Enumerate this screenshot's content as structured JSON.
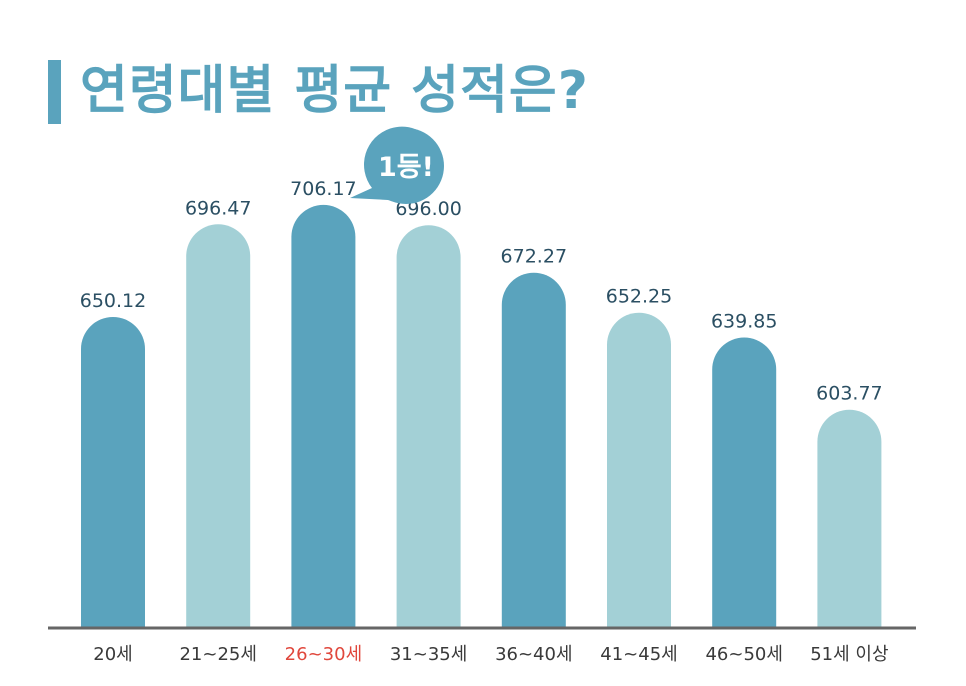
{
  "chart_data": {
    "type": "bar",
    "title": "연령대별 평균 성적은?",
    "categories": [
      "20세",
      "21~25세",
      "26~30세",
      "31~35세",
      "36~40세",
      "41~45세",
      "46~50세",
      "51세 이상"
    ],
    "values": [
      650.12,
      696.47,
      706.17,
      696.0,
      672.27,
      652.25,
      639.85,
      603.77
    ],
    "value_labels": [
      "650.12",
      "696.47",
      "706.17",
      "696.00",
      "672.27",
      "652.25",
      "639.85",
      "603.77"
    ],
    "highlight_index": 2,
    "highlight_badge": "1등!",
    "grid": false,
    "colors": {
      "dark": "#5aa3bd",
      "light": "#a3d0d6",
      "axis": "#666666",
      "highlight_text": "#e0473c",
      "badge": "#5aa3bd"
    },
    "bar_color_pattern": [
      "dark",
      "light",
      "dark",
      "light",
      "dark",
      "light",
      "dark",
      "light"
    ]
  }
}
